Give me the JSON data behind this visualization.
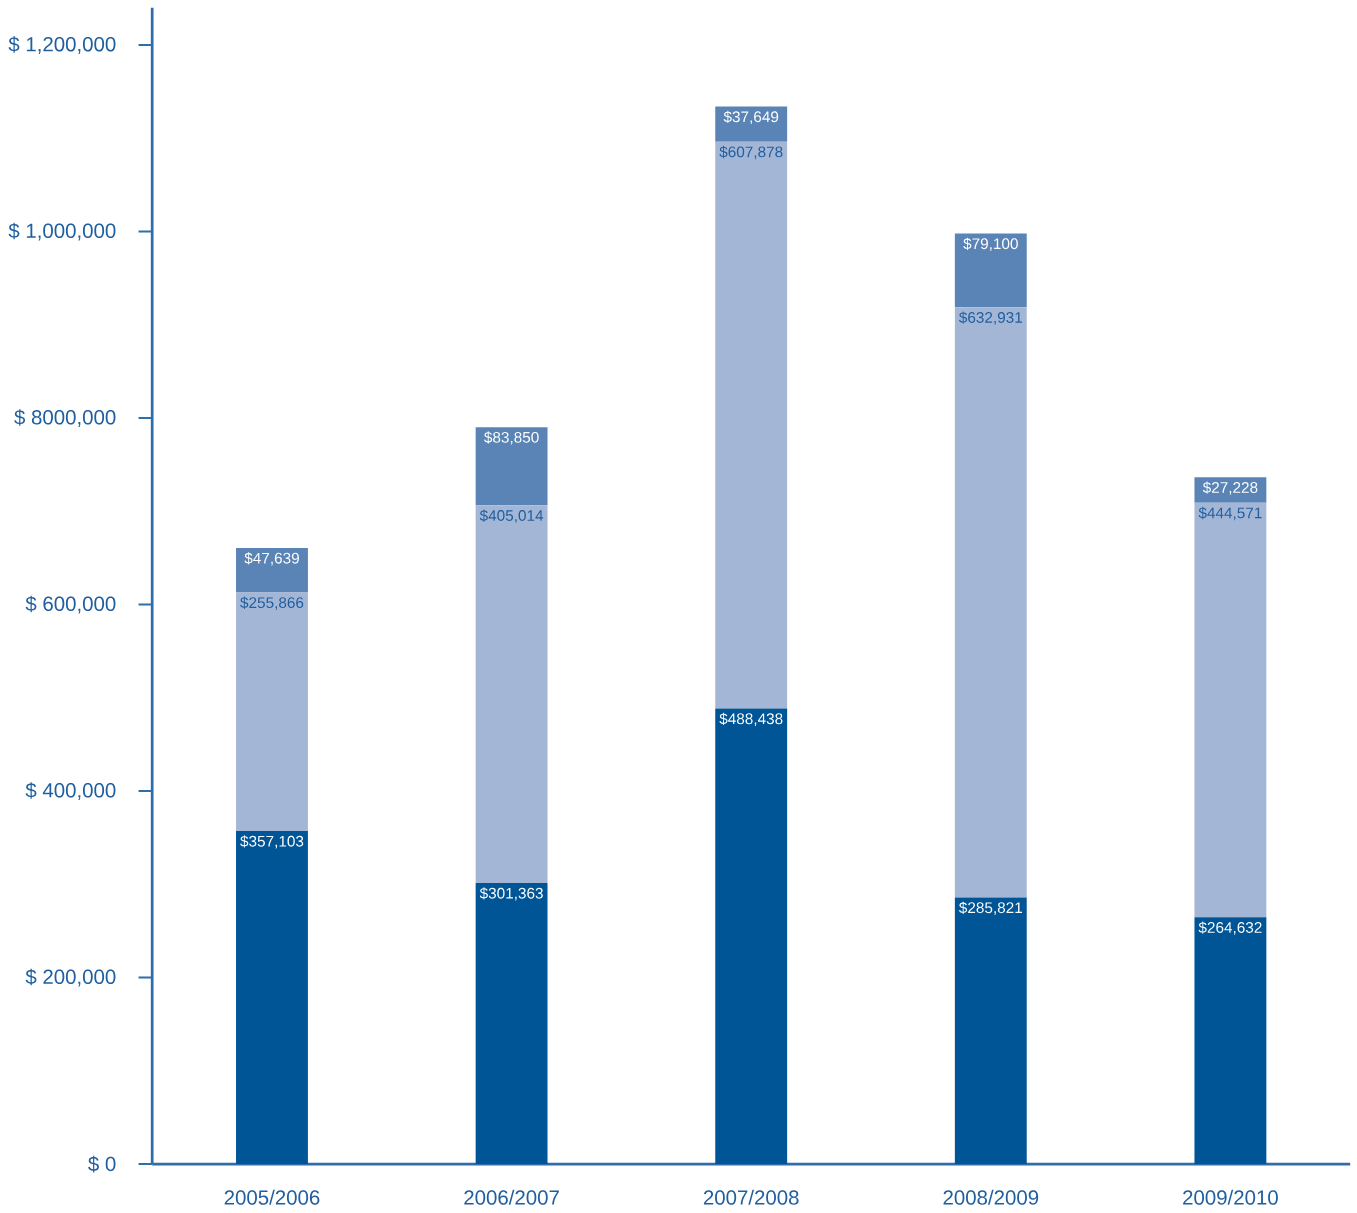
{
  "chart_data": {
    "type": "bar",
    "stacked": true,
    "categories": [
      "2005/2006",
      "2006/2007",
      "2007/2008",
      "2008/2009",
      "2009/2010"
    ],
    "ylim": [
      0,
      1240000
    ],
    "yticks": [
      {
        "value": 0,
        "label": "$ 0"
      },
      {
        "value": 200000,
        "label": "$ 200,000"
      },
      {
        "value": 400000,
        "label": "$ 400,000"
      },
      {
        "value": 600000,
        "label": "$ 600,000"
      },
      {
        "value": 800000,
        "label": "$ 8000,000"
      },
      {
        "value": 1000000,
        "label": "$ 1,000,000"
      },
      {
        "value": 1200000,
        "label": "$ 1,200,000"
      }
    ],
    "series": [
      {
        "color": "#005596",
        "values": [
          357103,
          301363,
          488438,
          285821,
          264632
        ],
        "value_labels": [
          "$357,103",
          "$301,363",
          "$488,438",
          "$285,821",
          "$264,632"
        ]
      },
      {
        "color": "#a4b6d6",
        "values": [
          255866,
          405014,
          607878,
          632931,
          444571
        ],
        "value_labels": [
          "$255,866",
          "$405,014",
          "$607,878",
          "$632,931",
          "$444,571"
        ]
      },
      {
        "color": "#5b84b6",
        "values": [
          47639,
          83850,
          37649,
          79100,
          27228
        ],
        "value_labels": [
          "$47,639",
          "$83,850",
          "$37,649",
          "$79,100",
          "$27,228"
        ]
      }
    ]
  }
}
